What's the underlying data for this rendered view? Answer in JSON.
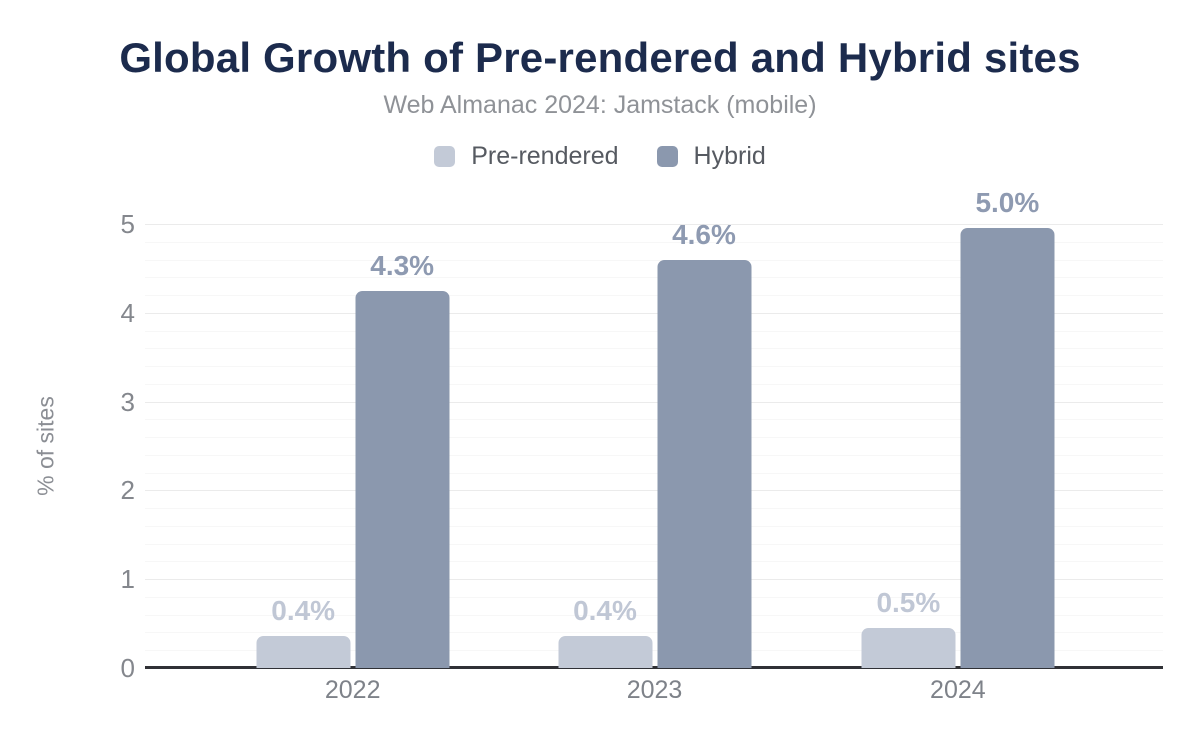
{
  "chart_data": {
    "type": "bar",
    "title": "Global Growth of Pre-rendered and Hybrid sites",
    "subtitle": "Web Almanac 2024: Jamstack (mobile)",
    "ylabel": "% of sites",
    "categories": [
      "2022",
      "2023",
      "2024"
    ],
    "series": [
      {
        "name": "Pre-rendered",
        "color": "#c3cad7",
        "label_color": "#c0c7d5",
        "values": [
          0.36,
          0.36,
          0.45
        ],
        "labels": [
          "0.4%",
          "0.4%",
          "0.5%"
        ]
      },
      {
        "name": "Hybrid",
        "color": "#8b98ae",
        "label_color": "#8e9ab1",
        "values": [
          4.25,
          4.6,
          4.95
        ],
        "labels": [
          "4.3%",
          "4.6%",
          "5.0%"
        ]
      }
    ],
    "ylim": [
      0,
      5
    ],
    "yticks": [
      0,
      1,
      2,
      3,
      4,
      5
    ],
    "minor_tick_step": 0.2,
    "grid": "horizontal-major-and-minor",
    "legend_position": "top-center",
    "group_centers_pct": [
      20.4,
      50.05,
      79.85
    ]
  }
}
